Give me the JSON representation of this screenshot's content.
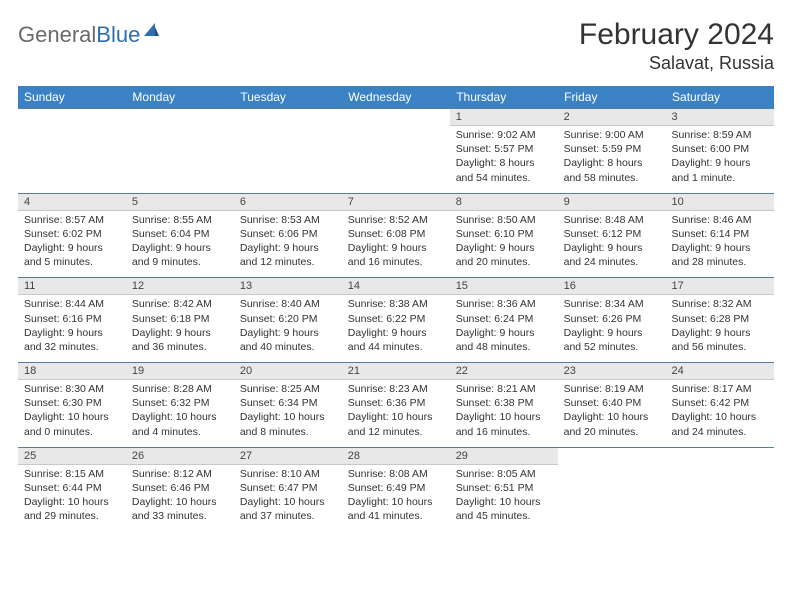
{
  "logo": {
    "text1": "General",
    "text2": "Blue"
  },
  "title": "February 2024",
  "location": "Salavat, Russia",
  "colors": {
    "header_bg": "#3b82c4",
    "header_text": "#ffffff",
    "daynum_bg": "#e8e8e8",
    "rule": "#5a7a9a",
    "logo_gray": "#6a6a6a",
    "logo_blue": "#2f6fb0"
  },
  "day_names": [
    "Sunday",
    "Monday",
    "Tuesday",
    "Wednesday",
    "Thursday",
    "Friday",
    "Saturday"
  ],
  "weeks": [
    [
      null,
      null,
      null,
      null,
      {
        "n": "1",
        "sr": "9:02 AM",
        "ss": "5:57 PM",
        "d1": "8 hours",
        "d2": "and 54 minutes."
      },
      {
        "n": "2",
        "sr": "9:00 AM",
        "ss": "5:59 PM",
        "d1": "8 hours",
        "d2": "and 58 minutes."
      },
      {
        "n": "3",
        "sr": "8:59 AM",
        "ss": "6:00 PM",
        "d1": "9 hours",
        "d2": "and 1 minute."
      }
    ],
    [
      {
        "n": "4",
        "sr": "8:57 AM",
        "ss": "6:02 PM",
        "d1": "9 hours",
        "d2": "and 5 minutes."
      },
      {
        "n": "5",
        "sr": "8:55 AM",
        "ss": "6:04 PM",
        "d1": "9 hours",
        "d2": "and 9 minutes."
      },
      {
        "n": "6",
        "sr": "8:53 AM",
        "ss": "6:06 PM",
        "d1": "9 hours",
        "d2": "and 12 minutes."
      },
      {
        "n": "7",
        "sr": "8:52 AM",
        "ss": "6:08 PM",
        "d1": "9 hours",
        "d2": "and 16 minutes."
      },
      {
        "n": "8",
        "sr": "8:50 AM",
        "ss": "6:10 PM",
        "d1": "9 hours",
        "d2": "and 20 minutes."
      },
      {
        "n": "9",
        "sr": "8:48 AM",
        "ss": "6:12 PM",
        "d1": "9 hours",
        "d2": "and 24 minutes."
      },
      {
        "n": "10",
        "sr": "8:46 AM",
        "ss": "6:14 PM",
        "d1": "9 hours",
        "d2": "and 28 minutes."
      }
    ],
    [
      {
        "n": "11",
        "sr": "8:44 AM",
        "ss": "6:16 PM",
        "d1": "9 hours",
        "d2": "and 32 minutes."
      },
      {
        "n": "12",
        "sr": "8:42 AM",
        "ss": "6:18 PM",
        "d1": "9 hours",
        "d2": "and 36 minutes."
      },
      {
        "n": "13",
        "sr": "8:40 AM",
        "ss": "6:20 PM",
        "d1": "9 hours",
        "d2": "and 40 minutes."
      },
      {
        "n": "14",
        "sr": "8:38 AM",
        "ss": "6:22 PM",
        "d1": "9 hours",
        "d2": "and 44 minutes."
      },
      {
        "n": "15",
        "sr": "8:36 AM",
        "ss": "6:24 PM",
        "d1": "9 hours",
        "d2": "and 48 minutes."
      },
      {
        "n": "16",
        "sr": "8:34 AM",
        "ss": "6:26 PM",
        "d1": "9 hours",
        "d2": "and 52 minutes."
      },
      {
        "n": "17",
        "sr": "8:32 AM",
        "ss": "6:28 PM",
        "d1": "9 hours",
        "d2": "and 56 minutes."
      }
    ],
    [
      {
        "n": "18",
        "sr": "8:30 AM",
        "ss": "6:30 PM",
        "d1": "10 hours",
        "d2": "and 0 minutes."
      },
      {
        "n": "19",
        "sr": "8:28 AM",
        "ss": "6:32 PM",
        "d1": "10 hours",
        "d2": "and 4 minutes."
      },
      {
        "n": "20",
        "sr": "8:25 AM",
        "ss": "6:34 PM",
        "d1": "10 hours",
        "d2": "and 8 minutes."
      },
      {
        "n": "21",
        "sr": "8:23 AM",
        "ss": "6:36 PM",
        "d1": "10 hours",
        "d2": "and 12 minutes."
      },
      {
        "n": "22",
        "sr": "8:21 AM",
        "ss": "6:38 PM",
        "d1": "10 hours",
        "d2": "and 16 minutes."
      },
      {
        "n": "23",
        "sr": "8:19 AM",
        "ss": "6:40 PM",
        "d1": "10 hours",
        "d2": "and 20 minutes."
      },
      {
        "n": "24",
        "sr": "8:17 AM",
        "ss": "6:42 PM",
        "d1": "10 hours",
        "d2": "and 24 minutes."
      }
    ],
    [
      {
        "n": "25",
        "sr": "8:15 AM",
        "ss": "6:44 PM",
        "d1": "10 hours",
        "d2": "and 29 minutes."
      },
      {
        "n": "26",
        "sr": "8:12 AM",
        "ss": "6:46 PM",
        "d1": "10 hours",
        "d2": "and 33 minutes."
      },
      {
        "n": "27",
        "sr": "8:10 AM",
        "ss": "6:47 PM",
        "d1": "10 hours",
        "d2": "and 37 minutes."
      },
      {
        "n": "28",
        "sr": "8:08 AM",
        "ss": "6:49 PM",
        "d1": "10 hours",
        "d2": "and 41 minutes."
      },
      {
        "n": "29",
        "sr": "8:05 AM",
        "ss": "6:51 PM",
        "d1": "10 hours",
        "d2": "and 45 minutes."
      },
      null,
      null
    ]
  ],
  "labels": {
    "sunrise": "Sunrise:",
    "sunset": "Sunset:",
    "daylight": "Daylight:"
  }
}
